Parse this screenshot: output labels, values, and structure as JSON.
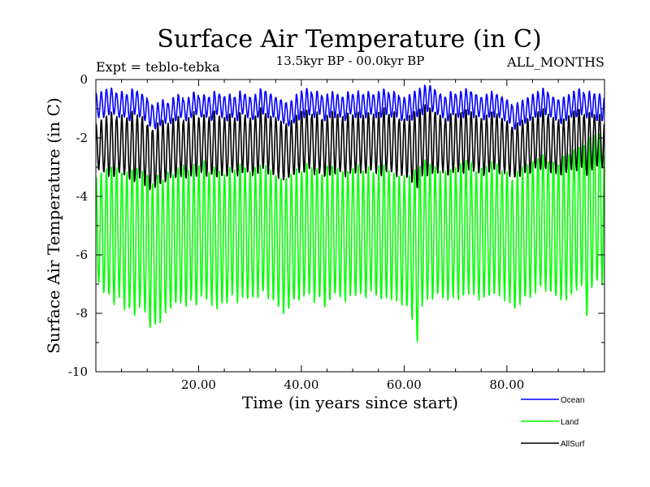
{
  "chart_data": {
    "type": "line",
    "title": "Surface Air Temperature (in C)",
    "subtitle": "13.5kyr BP - 00.0kyr BP",
    "annotation_left": "Expt = teblo-tebka",
    "annotation_right": "ALL_MONTHS",
    "xlabel": "Time (in years since start)",
    "ylabel": "Surface Air Temperature (in C)",
    "xlim": [
      0,
      99
    ],
    "ylim": [
      -10,
      0
    ],
    "x_ticks": [
      20,
      40,
      60,
      80
    ],
    "x_tick_labels": [
      "20.00",
      "40.00",
      "60.00",
      "80.00"
    ],
    "y_ticks": [
      0,
      -2,
      -4,
      -6,
      -8,
      -10
    ],
    "y_tick_labels": [
      "0",
      "-2",
      "-4",
      "-6",
      "-8",
      "-10"
    ],
    "legend_position": "bottom-right",
    "samples_per_year": 12,
    "series": [
      {
        "name": "Ocean",
        "color": "#0000ff",
        "annual_max": [
          -0.5,
          -0.4,
          -0.3,
          -0.3,
          -0.5,
          -0.4,
          -0.5,
          -0.3,
          -0.4,
          -0.5,
          -0.7,
          -0.9,
          -0.8,
          -0.7,
          -0.8,
          -0.6,
          -0.5,
          -0.7,
          -0.6,
          -0.4,
          -0.6,
          -0.5,
          -0.6,
          -0.4,
          -0.5,
          -0.6,
          -0.5,
          -0.6,
          -0.4,
          -0.5,
          -0.6,
          -0.5,
          -0.3,
          -0.4,
          -0.5,
          -0.6,
          -0.7,
          -0.8,
          -0.7,
          -0.5,
          -0.4,
          -0.3,
          -0.5,
          -0.4,
          -0.6,
          -0.5,
          -0.4,
          -0.5,
          -0.6,
          -0.4,
          -0.5,
          -0.4,
          -0.5,
          -0.4,
          -0.5,
          -0.4,
          -0.3,
          -0.5,
          -0.4,
          -0.6,
          -0.6,
          -0.5,
          -0.4,
          -0.3,
          -0.2,
          -0.2,
          -0.4,
          -0.5,
          -0.6,
          -0.4,
          -0.5,
          -0.4,
          -0.3,
          -0.4,
          -0.5,
          -0.6,
          -0.5,
          -0.4,
          -0.5,
          -0.6,
          -0.7,
          -0.9,
          -0.8,
          -0.7,
          -0.6,
          -0.5,
          -0.4,
          -0.3,
          -0.5,
          -0.6,
          -0.7,
          -0.6,
          -0.5,
          -0.4,
          -0.3,
          -0.5,
          -0.4,
          -0.5,
          -0.5
        ],
        "annual_min": [
          -1.3,
          -1.3,
          -1.2,
          -1.2,
          -1.3,
          -1.3,
          -1.4,
          -1.2,
          -1.3,
          -1.4,
          -1.6,
          -1.7,
          -1.6,
          -1.5,
          -1.5,
          -1.4,
          -1.3,
          -1.4,
          -1.3,
          -1.2,
          -1.3,
          -1.3,
          -1.4,
          -1.2,
          -1.3,
          -1.4,
          -1.3,
          -1.4,
          -1.2,
          -1.3,
          -1.4,
          -1.3,
          -1.2,
          -1.3,
          -1.3,
          -1.4,
          -1.5,
          -1.6,
          -1.5,
          -1.4,
          -1.3,
          -1.2,
          -1.3,
          -1.2,
          -1.4,
          -1.3,
          -1.3,
          -1.3,
          -1.4,
          -1.2,
          -1.3,
          -1.3,
          -1.3,
          -1.2,
          -1.3,
          -1.3,
          -1.2,
          -1.3,
          -1.3,
          -1.4,
          -1.4,
          -1.4,
          -1.3,
          -1.2,
          -1.1,
          -1.1,
          -1.2,
          -1.3,
          -1.4,
          -1.2,
          -1.3,
          -1.3,
          -1.2,
          -1.3,
          -1.3,
          -1.4,
          -1.3,
          -1.3,
          -1.3,
          -1.4,
          -1.5,
          -1.7,
          -1.6,
          -1.5,
          -1.4,
          -1.3,
          -1.3,
          -1.2,
          -1.3,
          -1.4,
          -1.5,
          -1.4,
          -1.3,
          -1.3,
          -1.2,
          -1.3,
          -1.3,
          -1.4,
          -1.4
        ]
      },
      {
        "name": "Land",
        "color": "#00ff00",
        "annual_max": [
          -3.4,
          -3.2,
          -3.0,
          -2.8,
          -3.1,
          -3.0,
          -3.2,
          -2.9,
          -3.0,
          -3.1,
          -3.3,
          -3.4,
          -3.2,
          -3.3,
          -3.2,
          -3.1,
          -2.9,
          -3.0,
          -3.1,
          -2.9,
          -3.0,
          -2.8,
          -3.1,
          -3.0,
          -3.1,
          -3.2,
          -3.0,
          -3.1,
          -2.9,
          -3.0,
          -3.1,
          -3.0,
          -2.9,
          -3.0,
          -3.1,
          -3.2,
          -3.3,
          -3.4,
          -3.2,
          -3.0,
          -3.0,
          -2.9,
          -3.0,
          -2.9,
          -3.1,
          -3.0,
          -3.0,
          -3.1,
          -3.2,
          -3.0,
          -3.0,
          -2.9,
          -3.0,
          -3.0,
          -3.1,
          -3.0,
          -2.9,
          -3.0,
          -3.1,
          -3.2,
          -3.3,
          -3.2,
          -3.0,
          -2.9,
          -2.8,
          -2.8,
          -3.0,
          -3.1,
          -3.2,
          -3.0,
          -3.0,
          -2.9,
          -2.8,
          -2.9,
          -3.0,
          -3.1,
          -3.0,
          -2.8,
          -2.9,
          -3.0,
          -3.2,
          -3.3,
          -3.2,
          -3.0,
          -2.8,
          -2.7,
          -2.6,
          -2.5,
          -2.7,
          -2.8,
          -2.9,
          -2.7,
          -2.5,
          -2.4,
          -2.2,
          -2.0,
          -1.9,
          -1.8,
          -1.8
        ],
        "annual_min": [
          -7.0,
          -7.3,
          -7.5,
          -7.7,
          -7.5,
          -7.8,
          -7.9,
          -8.0,
          -7.8,
          -8.1,
          -8.5,
          -8.4,
          -8.3,
          -8.0,
          -7.9,
          -7.8,
          -7.7,
          -7.8,
          -7.6,
          -7.7,
          -7.5,
          -7.6,
          -7.7,
          -7.8,
          -7.6,
          -7.7,
          -7.5,
          -7.6,
          -7.4,
          -7.5,
          -7.6,
          -7.4,
          -7.3,
          -7.5,
          -7.6,
          -7.8,
          -8.0,
          -7.9,
          -7.7,
          -7.5,
          -7.4,
          -7.3,
          -7.6,
          -7.5,
          -7.7,
          -7.6,
          -7.4,
          -7.5,
          -7.6,
          -7.4,
          -7.5,
          -7.4,
          -7.5,
          -7.3,
          -7.5,
          -7.6,
          -7.4,
          -7.5,
          -7.6,
          -7.7,
          -7.9,
          -8.2,
          -8.9,
          -7.8,
          -7.6,
          -7.5,
          -7.4,
          -7.5,
          -7.6,
          -7.4,
          -7.5,
          -7.4,
          -7.3,
          -7.4,
          -7.5,
          -7.6,
          -7.4,
          -7.3,
          -7.4,
          -7.5,
          -7.6,
          -7.8,
          -7.7,
          -7.5,
          -7.4,
          -7.3,
          -7.2,
          -7.3,
          -7.4,
          -7.5,
          -7.6,
          -7.5,
          -7.3,
          -7.2,
          -7.0,
          -8.1,
          -7.2,
          -7.0,
          -7.0
        ]
      },
      {
        "name": "AllSurf",
        "color": "#000000",
        "annual_max": [
          -1.5,
          -1.4,
          -1.2,
          -1.1,
          -1.3,
          -1.2,
          -1.3,
          -1.1,
          -1.2,
          -1.3,
          -1.5,
          -1.7,
          -1.5,
          -1.4,
          -1.5,
          -1.3,
          -1.2,
          -1.4,
          -1.3,
          -1.1,
          -1.3,
          -1.2,
          -1.3,
          -1.1,
          -1.2,
          -1.3,
          -1.2,
          -1.3,
          -1.1,
          -1.2,
          -1.3,
          -1.2,
          -1.0,
          -1.1,
          -1.2,
          -1.3,
          -1.4,
          -1.5,
          -1.4,
          -1.2,
          -1.1,
          -1.0,
          -1.2,
          -1.1,
          -1.3,
          -1.2,
          -1.1,
          -1.2,
          -1.3,
          -1.1,
          -1.2,
          -1.1,
          -1.2,
          -1.1,
          -1.2,
          -1.1,
          -1.0,
          -1.2,
          -1.1,
          -1.3,
          -1.3,
          -1.2,
          -1.1,
          -1.0,
          -0.9,
          -0.9,
          -1.1,
          -1.2,
          -1.3,
          -1.1,
          -1.2,
          -1.1,
          -1.0,
          -1.1,
          -1.2,
          -1.3,
          -1.2,
          -1.1,
          -1.2,
          -1.3,
          -1.4,
          -1.6,
          -1.5,
          -1.4,
          -1.3,
          -1.2,
          -1.1,
          -1.0,
          -1.2,
          -1.3,
          -1.4,
          -1.3,
          -1.2,
          -1.1,
          -1.0,
          -1.2,
          -1.1,
          -1.2,
          -1.2
        ],
        "annual_min": [
          -3.1,
          -3.2,
          -3.3,
          -3.4,
          -3.2,
          -3.3,
          -3.4,
          -3.5,
          -3.4,
          -3.6,
          -3.8,
          -3.7,
          -3.6,
          -3.5,
          -3.4,
          -3.4,
          -3.3,
          -3.4,
          -3.3,
          -3.3,
          -3.2,
          -3.3,
          -3.3,
          -3.4,
          -3.3,
          -3.3,
          -3.2,
          -3.3,
          -3.2,
          -3.2,
          -3.3,
          -3.2,
          -3.1,
          -3.2,
          -3.3,
          -3.4,
          -3.5,
          -3.4,
          -3.3,
          -3.2,
          -3.2,
          -3.1,
          -3.3,
          -3.2,
          -3.3,
          -3.3,
          -3.2,
          -3.2,
          -3.3,
          -3.2,
          -3.2,
          -3.2,
          -3.2,
          -3.1,
          -3.2,
          -3.3,
          -3.2,
          -3.2,
          -3.3,
          -3.3,
          -3.4,
          -3.5,
          -3.7,
          -3.3,
          -3.3,
          -3.2,
          -3.2,
          -3.2,
          -3.3,
          -3.2,
          -3.2,
          -3.2,
          -3.1,
          -3.2,
          -3.2,
          -3.3,
          -3.2,
          -3.1,
          -3.2,
          -3.2,
          -3.3,
          -3.4,
          -3.3,
          -3.2,
          -3.2,
          -3.1,
          -3.1,
          -3.1,
          -3.2,
          -3.2,
          -3.3,
          -3.2,
          -3.1,
          -3.1,
          -3.0,
          -3.3,
          -3.1,
          -3.0,
          -3.0
        ]
      }
    ]
  }
}
